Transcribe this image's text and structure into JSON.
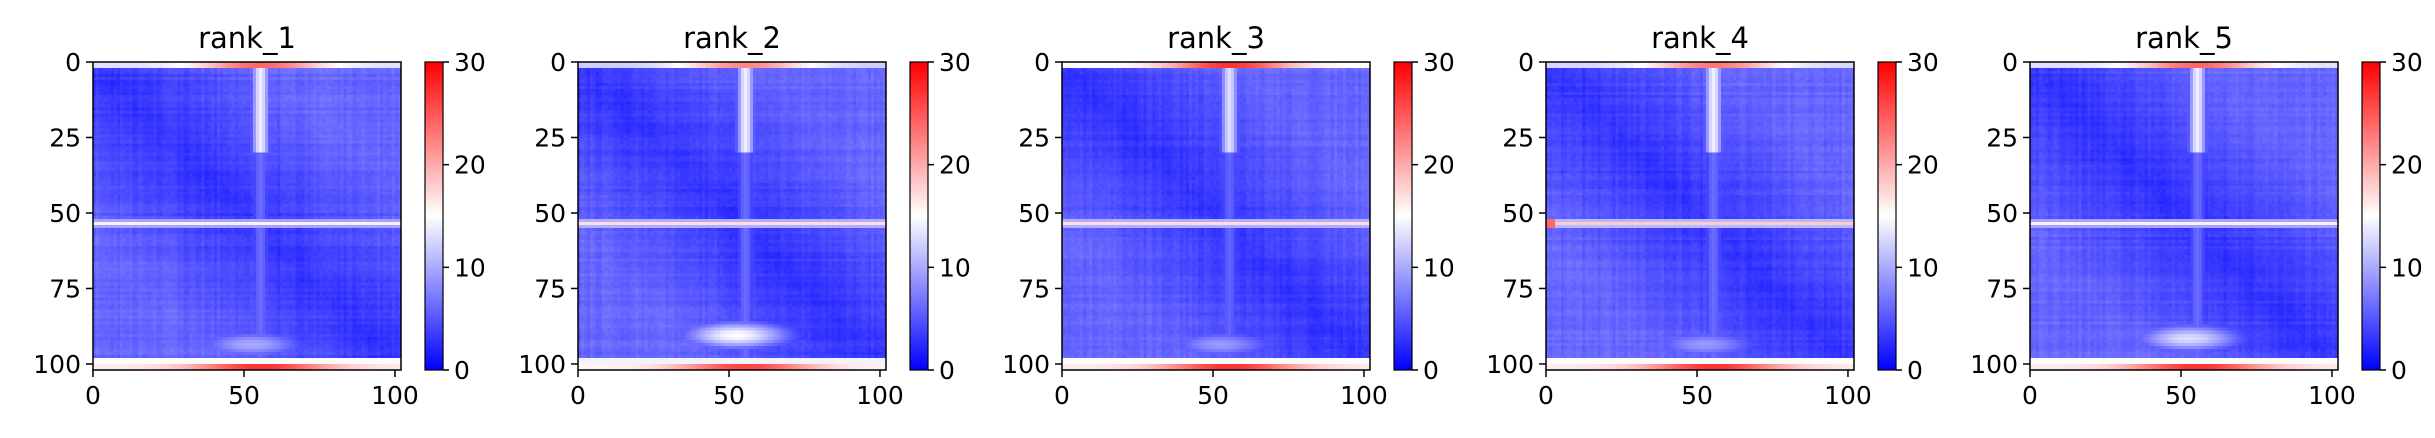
{
  "chart_data": [
    {
      "type": "heatmap",
      "title": "rank_1",
      "xticks": [
        0,
        50,
        100
      ],
      "yticks": [
        0,
        25,
        50,
        75,
        100
      ],
      "xlim": [
        0,
        102
      ],
      "ylim": [
        102,
        0
      ],
      "colorbar": {
        "min": 0,
        "max": 30,
        "ticks": [
          0,
          10,
          20,
          30
        ],
        "colormap": "bwr"
      },
      "features": {
        "base": 3,
        "diag_strength": 3,
        "hband_row": 53,
        "hband_val": 16,
        "vband_col": 55,
        "vband_val": 14,
        "top_edge_val": 24,
        "bottom_edge_val": 27,
        "bottom_glow_row": 93,
        "bottom_glow_val": 10,
        "left_edge_row": -1,
        "left_edge_val": 0
      }
    },
    {
      "type": "heatmap",
      "title": "rank_2",
      "xticks": [
        0,
        50,
        100
      ],
      "yticks": [
        0,
        25,
        50,
        75,
        100
      ],
      "xlim": [
        0,
        102
      ],
      "ylim": [
        102,
        0
      ],
      "colorbar": {
        "min": 0,
        "max": 30,
        "ticks": [
          0,
          10,
          20,
          30
        ],
        "colormap": "bwr"
      },
      "features": {
        "base": 3,
        "diag_strength": 3,
        "hband_row": 53,
        "hband_val": 17,
        "vband_col": 55,
        "vband_val": 14,
        "top_edge_val": 22,
        "bottom_edge_val": 26,
        "bottom_glow_row": 90,
        "bottom_glow_val": 15,
        "left_edge_row": -1,
        "left_edge_val": 0
      }
    },
    {
      "type": "heatmap",
      "title": "rank_3",
      "xticks": [
        0,
        50,
        100
      ],
      "yticks": [
        0,
        25,
        50,
        75,
        100
      ],
      "xlim": [
        0,
        102
      ],
      "ylim": [
        102,
        0
      ],
      "colorbar": {
        "min": 0,
        "max": 30,
        "ticks": [
          0,
          10,
          20,
          30
        ],
        "colormap": "bwr"
      },
      "features": {
        "base": 3,
        "diag_strength": 3,
        "hband_row": 53,
        "hband_val": 17,
        "vband_col": 55,
        "vband_val": 13,
        "top_edge_val": 27,
        "bottom_edge_val": 27,
        "bottom_glow_row": 93,
        "bottom_glow_val": 9,
        "left_edge_row": -1,
        "left_edge_val": 0
      }
    },
    {
      "type": "heatmap",
      "title": "rank_4",
      "xticks": [
        0,
        50,
        100
      ],
      "yticks": [
        0,
        25,
        50,
        75,
        100
      ],
      "xlim": [
        0,
        102
      ],
      "ylim": [
        102,
        0
      ],
      "colorbar": {
        "min": 0,
        "max": 30,
        "ticks": [
          0,
          10,
          20,
          30
        ],
        "colormap": "bwr"
      },
      "features": {
        "base": 3,
        "diag_strength": 3,
        "hband_row": 53,
        "hband_val": 18,
        "vband_col": 55,
        "vband_val": 14,
        "top_edge_val": 23,
        "bottom_edge_val": 27,
        "bottom_glow_row": 93,
        "bottom_glow_val": 9,
        "left_edge_row": 53,
        "left_edge_val": 24
      }
    },
    {
      "type": "heatmap",
      "title": "rank_5",
      "xticks": [
        0,
        50,
        100
      ],
      "yticks": [
        0,
        25,
        50,
        75,
        100
      ],
      "xlim": [
        0,
        102
      ],
      "ylim": [
        102,
        0
      ],
      "colorbar": {
        "min": 0,
        "max": 30,
        "ticks": [
          0,
          10,
          20,
          30
        ],
        "colormap": "bwr"
      },
      "features": {
        "base": 3,
        "diag_strength": 3,
        "hband_row": 53,
        "hband_val": 16,
        "vband_col": 55,
        "vband_val": 14,
        "top_edge_val": 24,
        "bottom_edge_val": 27,
        "bottom_glow_row": 91,
        "bottom_glow_val": 13,
        "left_edge_row": -1,
        "left_edge_val": 0
      }
    }
  ]
}
